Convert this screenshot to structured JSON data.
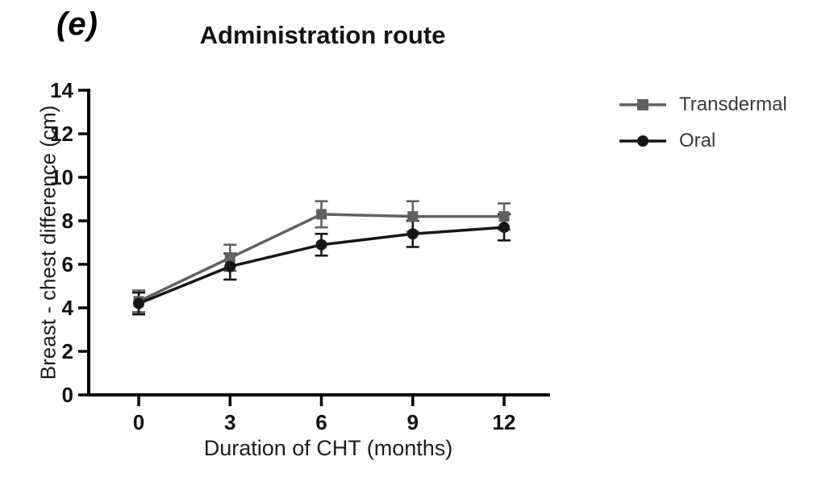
{
  "panel_label": "(e)",
  "chart_data": {
    "type": "line",
    "title": "Administration route",
    "xlabel": "Duration of CHT (months)",
    "ylabel": "Breast - chest difference (cm)",
    "x": [
      0,
      3,
      6,
      9,
      12
    ],
    "xticks": [
      0,
      3,
      6,
      9,
      12
    ],
    "yticks": [
      0,
      2,
      4,
      6,
      8,
      10,
      12,
      14
    ],
    "xlim": [
      -1.6,
      13.5
    ],
    "ylim": [
      0,
      14
    ],
    "grid": false,
    "legend_position": "right",
    "axis_color": "#000000",
    "series": [
      {
        "name": "Transdermal",
        "marker": "square",
        "color": "#616161",
        "values": [
          4.3,
          6.3,
          8.3,
          8.2,
          8.2
        ],
        "errors": [
          0.5,
          0.6,
          0.6,
          0.7,
          0.6
        ]
      },
      {
        "name": "Oral",
        "marker": "circle",
        "color": "#161616",
        "values": [
          4.2,
          5.9,
          6.9,
          7.4,
          7.7
        ],
        "errors": [
          0.5,
          0.6,
          0.5,
          0.6,
          0.6
        ]
      }
    ]
  }
}
